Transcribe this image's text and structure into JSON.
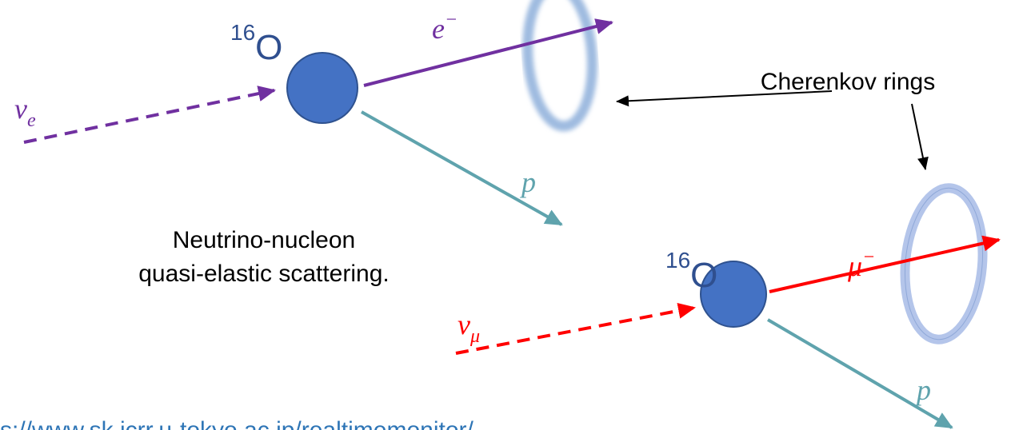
{
  "top_interaction": {
    "nucleus_label": {
      "superscript": "16",
      "symbol": "O"
    },
    "incoming": {
      "symbol": "ν",
      "subscript": "e"
    },
    "lepton": {
      "symbol": "e",
      "superscript": "−"
    },
    "proton": "p"
  },
  "bottom_interaction": {
    "nucleus_label": {
      "superscript": "16",
      "symbol": "O"
    },
    "incoming": {
      "symbol": "ν",
      "subscript": "μ"
    },
    "lepton": {
      "symbol": "μ",
      "superscript": "−"
    },
    "proton": "p"
  },
  "ring_label": "Cherenkov rings",
  "caption": [
    "Neutrino-nucleon",
    "quasi-elastic scattering."
  ],
  "source_url": "s://www.sk.icrr.u-tokyo.ac.jp/realtimemonitor/"
}
